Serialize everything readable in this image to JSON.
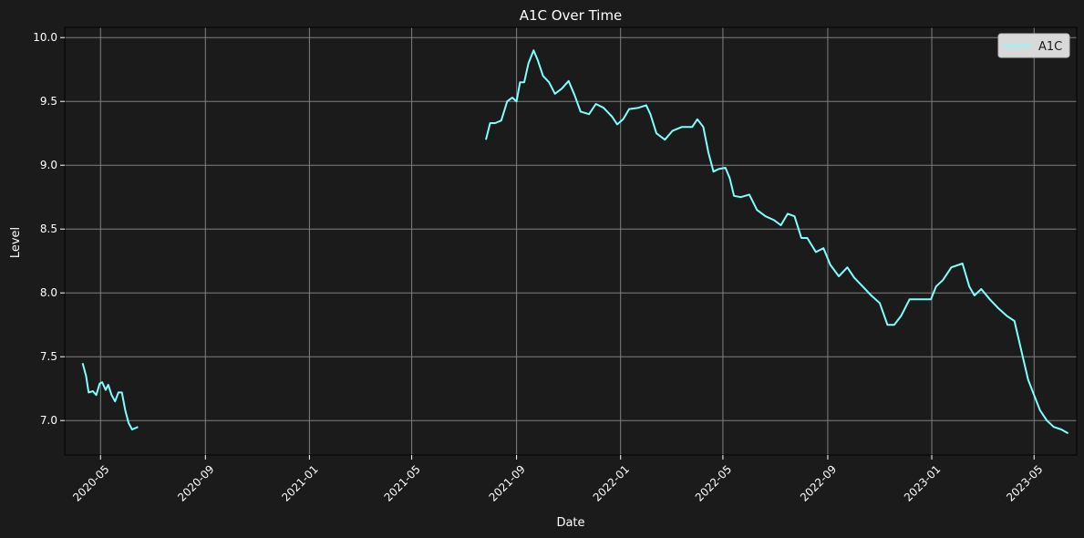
{
  "chart_data": {
    "type": "line",
    "title": "A1C Over Time",
    "xlabel": "Date",
    "ylabel": "Level",
    "xlim": [
      "2020-03-20",
      "2023-06-20"
    ],
    "ylim": [
      6.73,
      10.08
    ],
    "x_ticks": [
      "2020-05",
      "2020-09",
      "2021-01",
      "2021-05",
      "2021-09",
      "2022-01",
      "2022-05",
      "2022-09",
      "2023-01",
      "2023-05"
    ],
    "y_ticks": [
      "7.0",
      "7.5",
      "8.0",
      "8.5",
      "9.0",
      "9.5",
      "10.0"
    ],
    "grid": true,
    "legend_position": "top-right",
    "colors": {
      "background": "#1b1b1b",
      "line": "#7fffff",
      "grid": "#808080",
      "legend_bg": "#d9d9d9"
    },
    "series": [
      {
        "name": "A1C",
        "segments": [
          [
            [
              "2020-04-10",
              7.45
            ],
            [
              "2020-04-14",
              7.35
            ],
            [
              "2020-04-17",
              7.22
            ],
            [
              "2020-04-22",
              7.23
            ],
            [
              "2020-04-26",
              7.2
            ],
            [
              "2020-04-30",
              7.29
            ],
            [
              "2020-05-03",
              7.3
            ],
            [
              "2020-05-07",
              7.24
            ],
            [
              "2020-05-10",
              7.28
            ],
            [
              "2020-05-14",
              7.2
            ],
            [
              "2020-05-18",
              7.15
            ],
            [
              "2020-05-22",
              7.22
            ],
            [
              "2020-05-26",
              7.22
            ],
            [
              "2020-05-30",
              7.08
            ],
            [
              "2020-06-03",
              6.98
            ],
            [
              "2020-06-07",
              6.93
            ],
            [
              "2020-06-14",
              6.95
            ]
          ],
          [
            [
              "2021-07-27",
              9.2
            ],
            [
              "2021-08-01",
              9.33
            ],
            [
              "2021-08-07",
              9.33
            ],
            [
              "2021-08-14",
              9.35
            ],
            [
              "2021-08-21",
              9.5
            ],
            [
              "2021-08-27",
              9.53
            ],
            [
              "2021-09-01",
              9.5
            ],
            [
              "2021-09-05",
              9.65
            ],
            [
              "2021-09-10",
              9.65
            ],
            [
              "2021-09-15",
              9.8
            ],
            [
              "2021-09-21",
              9.9
            ],
            [
              "2021-09-26",
              9.82
            ],
            [
              "2021-10-02",
              9.7
            ],
            [
              "2021-10-09",
              9.65
            ],
            [
              "2021-10-16",
              9.56
            ],
            [
              "2021-10-24",
              9.6
            ],
            [
              "2021-11-01",
              9.66
            ],
            [
              "2021-11-08",
              9.55
            ],
            [
              "2021-11-15",
              9.42
            ],
            [
              "2021-11-25",
              9.4
            ],
            [
              "2021-12-03",
              9.48
            ],
            [
              "2021-12-12",
              9.45
            ],
            [
              "2021-12-22",
              9.38
            ],
            [
              "2021-12-28",
              9.32
            ],
            [
              "2022-01-04",
              9.36
            ],
            [
              "2022-01-11",
              9.44
            ],
            [
              "2022-01-22",
              9.45
            ],
            [
              "2022-01-31",
              9.47
            ],
            [
              "2022-02-05",
              9.4
            ],
            [
              "2022-02-12",
              9.25
            ],
            [
              "2022-02-22",
              9.2
            ],
            [
              "2022-03-03",
              9.27
            ],
            [
              "2022-03-14",
              9.3
            ],
            [
              "2022-03-26",
              9.3
            ],
            [
              "2022-04-01",
              9.36
            ],
            [
              "2022-04-08",
              9.3
            ],
            [
              "2022-04-14",
              9.1
            ],
            [
              "2022-04-20",
              8.95
            ],
            [
              "2022-04-26",
              8.97
            ],
            [
              "2022-05-04",
              8.98
            ],
            [
              "2022-05-09",
              8.9
            ],
            [
              "2022-05-14",
              8.76
            ],
            [
              "2022-05-22",
              8.75
            ],
            [
              "2022-06-01",
              8.77
            ],
            [
              "2022-06-10",
              8.65
            ],
            [
              "2022-06-20",
              8.6
            ],
            [
              "2022-06-30",
              8.57
            ],
            [
              "2022-07-08",
              8.53
            ],
            [
              "2022-07-16",
              8.62
            ],
            [
              "2022-07-24",
              8.6
            ],
            [
              "2022-08-01",
              8.43
            ],
            [
              "2022-08-08",
              8.43
            ],
            [
              "2022-08-18",
              8.32
            ],
            [
              "2022-08-27",
              8.35
            ],
            [
              "2022-09-04",
              8.22
            ],
            [
              "2022-09-14",
              8.13
            ],
            [
              "2022-09-24",
              8.2
            ],
            [
              "2022-10-02",
              8.12
            ],
            [
              "2022-10-12",
              8.05
            ],
            [
              "2022-10-22",
              7.98
            ],
            [
              "2022-11-01",
              7.92
            ],
            [
              "2022-11-10",
              7.75
            ],
            [
              "2022-11-18",
              7.75
            ],
            [
              "2022-11-26",
              7.82
            ],
            [
              "2022-12-06",
              7.95
            ],
            [
              "2022-12-31",
              7.95
            ],
            [
              "2023-01-06",
              8.05
            ],
            [
              "2023-01-14",
              8.1
            ],
            [
              "2023-01-24",
              8.2
            ],
            [
              "2023-02-06",
              8.23
            ],
            [
              "2023-02-14",
              8.05
            ],
            [
              "2023-02-20",
              7.98
            ],
            [
              "2023-02-28",
              8.03
            ],
            [
              "2023-03-10",
              7.95
            ],
            [
              "2023-03-20",
              7.88
            ],
            [
              "2023-03-30",
              7.82
            ],
            [
              "2023-04-08",
              7.78
            ],
            [
              "2023-04-16",
              7.55
            ],
            [
              "2023-04-24",
              7.32
            ],
            [
              "2023-05-01",
              7.2
            ],
            [
              "2023-05-08",
              7.08
            ],
            [
              "2023-05-16",
              7.0
            ],
            [
              "2023-05-24",
              6.95
            ],
            [
              "2023-06-02",
              6.93
            ],
            [
              "2023-06-10",
              6.9
            ]
          ]
        ]
      }
    ]
  }
}
